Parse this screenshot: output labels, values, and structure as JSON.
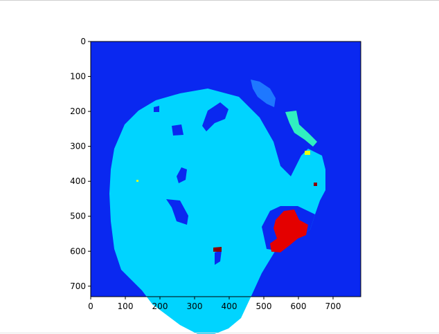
{
  "chart_data": {
    "type": "heatmap",
    "title": "",
    "xlabel": "",
    "ylabel": "",
    "xlim": [
      0,
      780
    ],
    "ylim": [
      730,
      0
    ],
    "x_ticks": [
      0,
      100,
      200,
      300,
      400,
      500,
      600,
      700
    ],
    "y_ticks": [
      0,
      100,
      200,
      300,
      400,
      500,
      600,
      700
    ],
    "colormap": "jet",
    "colors": {
      "background": "#0a28f0",
      "main_region": "#00d4ff",
      "small_blue_region": "#1e78ff",
      "cyan_green_region": "#30f0c0",
      "yellow_spot": "#e8ff10",
      "red_region": "#e40000",
      "dark_red_spot": "#8a0000"
    },
    "regions": [
      {
        "name": "main_region",
        "color_key": "main_region",
        "points": [
          [
            300,
            128
          ],
          [
            345,
            140
          ],
          [
            375,
            170
          ],
          [
            395,
            205
          ],
          [
            405,
            240
          ],
          [
            420,
            255
          ],
          [
            425,
            245
          ],
          [
            435,
            225
          ],
          [
            445,
            215
          ],
          [
            465,
            225
          ],
          [
            470,
            245
          ],
          [
            470,
            275
          ],
          [
            462,
            290
          ],
          [
            455,
            310
          ],
          [
            448,
            332
          ],
          [
            435,
            340
          ],
          [
            420,
            345
          ],
          [
            398,
            362
          ],
          [
            378,
            395
          ],
          [
            362,
            430
          ],
          [
            348,
            460
          ],
          [
            330,
            475
          ],
          [
            305,
            485
          ],
          [
            285,
            483
          ],
          [
            260,
            470
          ],
          [
            240,
            455
          ],
          [
            220,
            440
          ],
          [
            205,
            420
          ],
          [
            190,
            405
          ],
          [
            175,
            390
          ],
          [
            165,
            360
          ],
          [
            160,
            320
          ],
          [
            158,
            280
          ],
          [
            160,
            245
          ],
          [
            165,
            215
          ],
          [
            180,
            180
          ],
          [
            200,
            160
          ],
          [
            225,
            145
          ],
          [
            260,
            135
          ]
        ]
      },
      {
        "name": "lake_hole_1",
        "color_key": "background",
        "points": [
          [
            240,
            288
          ],
          [
            260,
            290
          ],
          [
            272,
            312
          ],
          [
            270,
            325
          ],
          [
            255,
            320
          ],
          [
            248,
            300
          ]
        ]
      },
      {
        "name": "lake_hole_2",
        "color_key": "background",
        "points": [
          [
            318,
            148
          ],
          [
            330,
            158
          ],
          [
            325,
            172
          ],
          [
            310,
            178
          ],
          [
            298,
            190
          ],
          [
            292,
            182
          ],
          [
            300,
            160
          ]
        ]
      },
      {
        "name": "lake_hole_3",
        "color_key": "background",
        "points": [
          [
            262,
            242
          ],
          [
            270,
            245
          ],
          [
            268,
            260
          ],
          [
            258,
            265
          ],
          [
            255,
            255
          ]
        ]
      },
      {
        "name": "lake_hole_4",
        "color_key": "background",
        "points": [
          [
            248,
            182
          ],
          [
            262,
            180
          ],
          [
            265,
            195
          ],
          [
            250,
            196
          ]
        ]
      },
      {
        "name": "lake_hole_5",
        "color_key": "background",
        "points": [
          [
            222,
            155
          ],
          [
            230,
            153
          ],
          [
            230,
            162
          ],
          [
            222,
            162
          ]
        ]
      },
      {
        "name": "lake_hole_6",
        "color_key": "background",
        "points": [
          [
            310,
            365
          ],
          [
            320,
            362
          ],
          [
            318,
            378
          ],
          [
            310,
            383
          ]
        ]
      },
      {
        "name": "lower_right_notch",
        "color_key": "background",
        "points": [
          [
            378,
            328
          ],
          [
            390,
            305
          ],
          [
            405,
            298
          ],
          [
            430,
            298
          ],
          [
            455,
            310
          ],
          [
            448,
            332
          ],
          [
            435,
            340
          ],
          [
            420,
            345
          ],
          [
            398,
            362
          ],
          [
            385,
            360
          ]
        ]
      },
      {
        "name": "small_blue_region",
        "color_key": "small_blue_region",
        "points": [
          [
            362,
            115
          ],
          [
            375,
            118
          ],
          [
            390,
            128
          ],
          [
            398,
            142
          ],
          [
            396,
            155
          ],
          [
            385,
            150
          ],
          [
            372,
            140
          ],
          [
            365,
            128
          ]
        ]
      },
      {
        "name": "cyan_green_region",
        "color_key": "cyan_green_region",
        "points": [
          [
            412,
            162
          ],
          [
            428,
            160
          ],
          [
            432,
            180
          ],
          [
            445,
            192
          ],
          [
            458,
            205
          ],
          [
            452,
            212
          ],
          [
            440,
            202
          ],
          [
            425,
            192
          ],
          [
            418,
            178
          ]
        ]
      },
      {
        "name": "yellow_spot",
        "color_key": "yellow_spot",
        "points": [
          [
            440,
            218
          ],
          [
            448,
            218
          ],
          [
            448,
            224
          ],
          [
            440,
            224
          ]
        ]
      },
      {
        "name": "red_region",
        "color_key": "red_region",
        "points": [
          [
            410,
            305
          ],
          [
            425,
            303
          ],
          [
            432,
            318
          ],
          [
            445,
            325
          ],
          [
            442,
            340
          ],
          [
            430,
            345
          ],
          [
            418,
            355
          ],
          [
            405,
            365
          ],
          [
            392,
            364
          ],
          [
            390,
            352
          ],
          [
            400,
            345
          ],
          [
            395,
            330
          ],
          [
            398,
            318
          ]
        ]
      },
      {
        "name": "dark_red_spot",
        "color_key": "dark_red_spot",
        "points": [
          [
            308,
            358
          ],
          [
            320,
            357
          ],
          [
            320,
            364
          ],
          [
            308,
            364
          ]
        ]
      },
      {
        "name": "dark_red_spot_2",
        "color_key": "dark_red_spot",
        "points": [
          [
            453,
            264
          ],
          [
            458,
            264
          ],
          [
            458,
            269
          ],
          [
            453,
            269
          ]
        ]
      },
      {
        "name": "white_dot",
        "color_key": "yellow_spot",
        "points": [
          [
            197,
            260
          ],
          [
            200,
            260
          ],
          [
            200,
            263
          ],
          [
            197,
            263
          ]
        ]
      }
    ]
  }
}
